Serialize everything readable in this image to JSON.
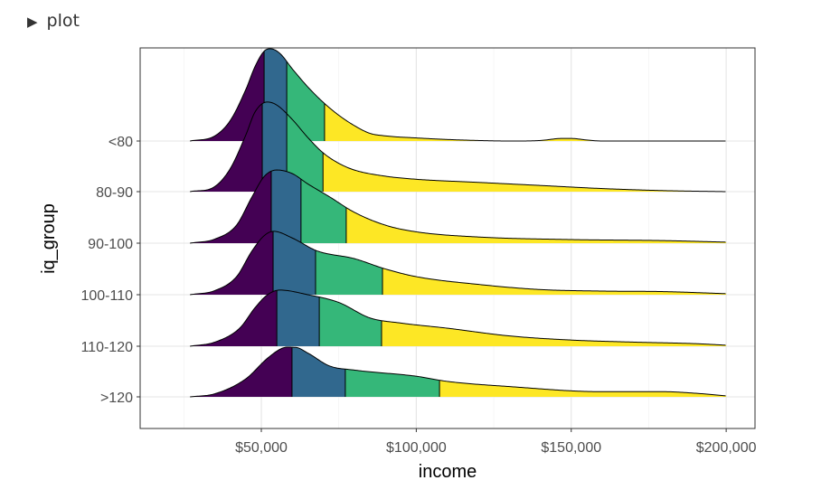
{
  "header": {
    "toggle_icon": "▶",
    "label": "plot"
  },
  "chart_data": {
    "type": "ridgeline",
    "xlabel": "income",
    "ylabel": "iq_group",
    "xlim": [
      10900,
      209300
    ],
    "xticks": [
      50000,
      100000,
      150000,
      200000
    ],
    "xtick_labels": [
      "$50,000",
      "$100,000",
      "$150,000",
      "$200,000"
    ],
    "colors": [
      "#440154",
      "#31688E",
      "#35B779",
      "#FDE725"
    ],
    "fill_by": "quartile",
    "series": [
      {
        "name": "<80",
        "quartiles": [
          50900,
          58200,
          70400
        ],
        "density": [
          [
            27,
            0
          ],
          [
            35,
            0.1
          ],
          [
            40,
            0.4
          ],
          [
            45,
            1.0
          ],
          [
            48,
            1.45
          ],
          [
            51,
            1.75
          ],
          [
            53,
            1.79
          ],
          [
            56,
            1.7
          ],
          [
            60,
            1.4
          ],
          [
            65,
            1.05
          ],
          [
            70,
            0.75
          ],
          [
            75,
            0.5
          ],
          [
            80,
            0.3
          ],
          [
            85,
            0.15
          ],
          [
            90,
            0.1
          ],
          [
            100,
            0.06
          ],
          [
            110,
            0.03
          ],
          [
            120,
            0.01
          ],
          [
            130,
            0.0
          ],
          [
            140,
            0.01
          ],
          [
            147,
            0.05
          ],
          [
            150,
            0.05
          ],
          [
            155,
            0.02
          ],
          [
            160,
            0
          ],
          [
            200,
            0
          ]
        ]
      },
      {
        "name": "80-90",
        "quartiles": [
          50300,
          58200,
          69900
        ],
        "density": [
          [
            27,
            0
          ],
          [
            35,
            0.1
          ],
          [
            40,
            0.45
          ],
          [
            45,
            1.1
          ],
          [
            48,
            1.55
          ],
          [
            52,
            1.74
          ],
          [
            55,
            1.68
          ],
          [
            60,
            1.4
          ],
          [
            65,
            1.05
          ],
          [
            70,
            0.75
          ],
          [
            75,
            0.55
          ],
          [
            80,
            0.42
          ],
          [
            90,
            0.3
          ],
          [
            100,
            0.24
          ],
          [
            120,
            0.18
          ],
          [
            140,
            0.12
          ],
          [
            160,
            0.06
          ],
          [
            180,
            0.02
          ],
          [
            200,
            0
          ]
        ]
      },
      {
        "name": "90-100",
        "quartiles": [
          53200,
          62800,
          77400
        ],
        "density": [
          [
            27,
            0
          ],
          [
            35,
            0.08
          ],
          [
            42,
            0.35
          ],
          [
            47,
            0.9
          ],
          [
            51,
            1.3
          ],
          [
            55,
            1.42
          ],
          [
            60,
            1.35
          ],
          [
            65,
            1.15
          ],
          [
            72,
            0.9
          ],
          [
            80,
            0.6
          ],
          [
            90,
            0.35
          ],
          [
            100,
            0.22
          ],
          [
            120,
            0.12
          ],
          [
            150,
            0.07
          ],
          [
            180,
            0.05
          ],
          [
            200,
            0.02
          ]
        ]
      },
      {
        "name": "100-110",
        "quartiles": [
          53800,
          67500,
          89100
        ],
        "density": [
          [
            27,
            0
          ],
          [
            35,
            0.08
          ],
          [
            42,
            0.35
          ],
          [
            47,
            0.85
          ],
          [
            51,
            1.15
          ],
          [
            54,
            1.23
          ],
          [
            60,
            1.1
          ],
          [
            68,
            0.85
          ],
          [
            80,
            0.7
          ],
          [
            90,
            0.5
          ],
          [
            100,
            0.35
          ],
          [
            120,
            0.2
          ],
          [
            140,
            0.1
          ],
          [
            160,
            0.07
          ],
          [
            180,
            0.06
          ],
          [
            200,
            0.02
          ]
        ]
      },
      {
        "name": "110-120",
        "quartiles": [
          55000,
          68700,
          88800
        ],
        "density": [
          [
            27,
            0
          ],
          [
            35,
            0.08
          ],
          [
            43,
            0.35
          ],
          [
            48,
            0.75
          ],
          [
            52,
            1.0
          ],
          [
            56,
            1.09
          ],
          [
            65,
            1.0
          ],
          [
            75,
            0.85
          ],
          [
            85,
            0.55
          ],
          [
            95,
            0.45
          ],
          [
            110,
            0.35
          ],
          [
            130,
            0.2
          ],
          [
            150,
            0.12
          ],
          [
            170,
            0.08
          ],
          [
            190,
            0.05
          ],
          [
            200,
            0.02
          ]
        ]
      },
      {
        "name": ">120",
        "quartiles": [
          59900,
          77100,
          107500
        ],
        "density": [
          [
            27,
            0
          ],
          [
            35,
            0.06
          ],
          [
            45,
            0.35
          ],
          [
            52,
            0.75
          ],
          [
            57,
            0.95
          ],
          [
            61,
            0.96
          ],
          [
            65,
            0.85
          ],
          [
            72,
            0.6
          ],
          [
            80,
            0.52
          ],
          [
            100,
            0.4
          ],
          [
            110,
            0.3
          ],
          [
            130,
            0.2
          ],
          [
            160,
            0.1
          ],
          [
            180,
            0.1
          ],
          [
            190,
            0.07
          ],
          [
            200,
            0.02
          ]
        ]
      }
    ]
  }
}
